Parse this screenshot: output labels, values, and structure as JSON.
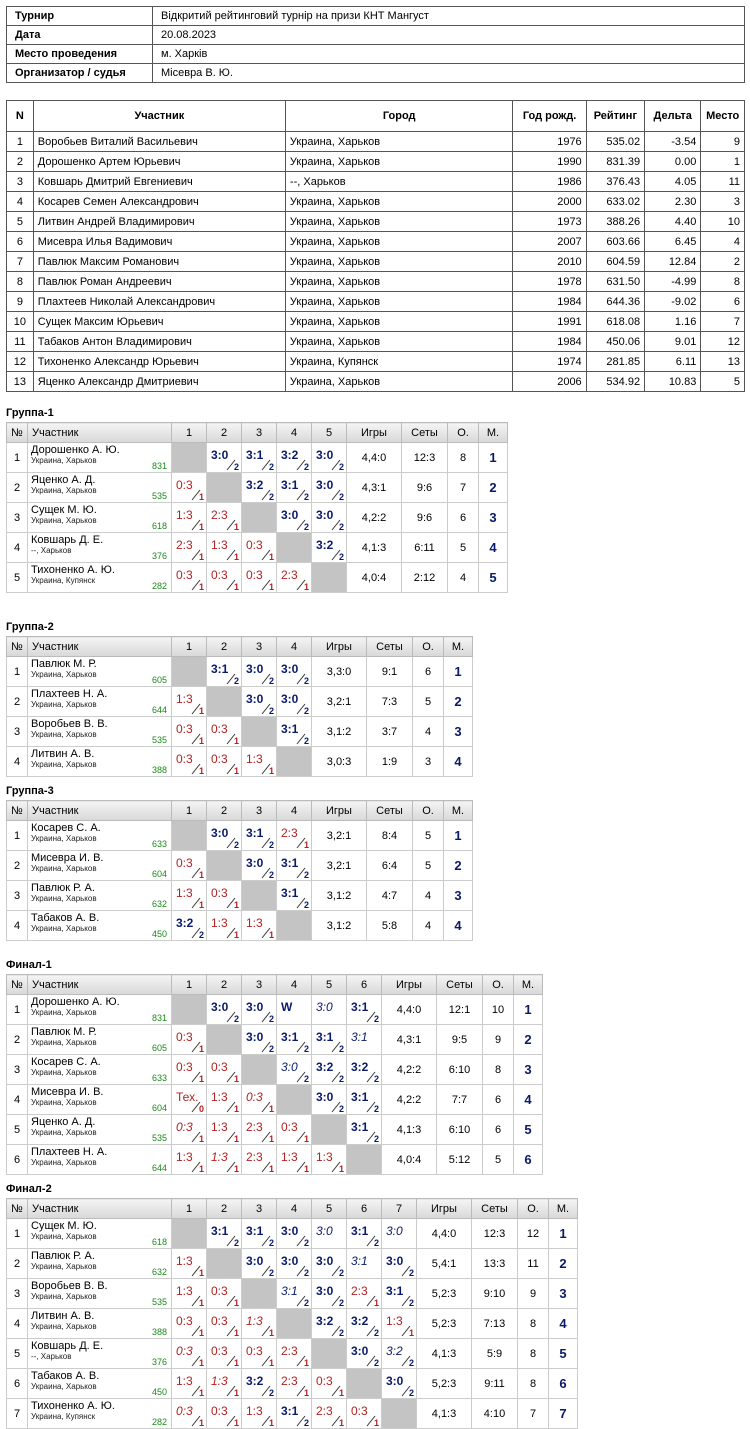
{
  "info": [
    {
      "key": "Турнир",
      "value": "Відкритий рейтинговий турнір на призи КНТ Мангуст"
    },
    {
      "key": "Дата",
      "value": "20.08.2023"
    },
    {
      "key": "Место проведения",
      "value": "м. Харків"
    },
    {
      "key": "Организатор / судья",
      "value": "Місевра В. Ю."
    }
  ],
  "players_headers": [
    "N",
    "Участник",
    "Город",
    "Год рожд.",
    "Рейтинг",
    "Дельта",
    "Место"
  ],
  "players": [
    [
      "1",
      "Воробьев Виталий Васильевич",
      "Украина, Харьков",
      "1976",
      "535.02",
      "-3.54",
      "9"
    ],
    [
      "2",
      "Дорошенко Артем Юрьевич",
      "Украина, Харьков",
      "1990",
      "831.39",
      "0.00",
      "1"
    ],
    [
      "3",
      "Ковшарь Дмитрий Евгениевич",
      "--, Харьков",
      "1986",
      "376.43",
      "4.05",
      "11"
    ],
    [
      "4",
      "Косарев Семен Александрович",
      "Украина, Харьков",
      "2000",
      "633.02",
      "2.30",
      "3"
    ],
    [
      "5",
      "Литвин Андрей Владимирович",
      "Украина, Харьков",
      "1973",
      "388.26",
      "4.40",
      "10"
    ],
    [
      "6",
      "Мисевра Илья Вадимович",
      "Украина, Харьков",
      "2007",
      "603.66",
      "6.45",
      "4"
    ],
    [
      "7",
      "Павлюк Максим Романович",
      "Украина, Харьков",
      "2010",
      "604.59",
      "12.84",
      "2"
    ],
    [
      "8",
      "Павлюк Роман Андреевич",
      "Украина, Харьков",
      "1978",
      "631.50",
      "-4.99",
      "8"
    ],
    [
      "9",
      "Плахтеев Николай Александрович",
      "Украина, Харьков",
      "1984",
      "644.36",
      "-9.02",
      "6"
    ],
    [
      "10",
      "Сущек Максим Юрьевич",
      "Украина, Харьков",
      "1991",
      "618.08",
      "1.16",
      "7"
    ],
    [
      "11",
      "Табаков Антон Владимирович",
      "Украина, Харьков",
      "1984",
      "450.06",
      "9.01",
      "12"
    ],
    [
      "12",
      "Тихоненко Александр Юрьевич",
      "Украина, Купянск",
      "1974",
      "281.85",
      "6.11",
      "13"
    ],
    [
      "13",
      "Яценко Александр Дмитриевич",
      "Украина, Харьков",
      "2006",
      "534.92",
      "10.83",
      "5"
    ]
  ],
  "group_headers": {
    "num": "№",
    "player": "Участник",
    "games": "Игры",
    "sets": "Сеты",
    "points": "О.",
    "place": "М."
  },
  "groups": [
    {
      "title": "Группа-1",
      "rows": [
        {
          "n": "1",
          "name": "Дорошенко А. Ю.",
          "city": "Украина, Харьков",
          "rating": "831",
          "cells": [
            null,
            "3:0|2|w",
            "3:1|2|w",
            "3:2|2|w",
            "3:0|2|w"
          ],
          "games": "4,4:0",
          "sets": "12:3",
          "points": "8",
          "place": "1"
        },
        {
          "n": "2",
          "name": "Яценко А. Д.",
          "city": "Украина, Харьков",
          "rating": "535",
          "cells": [
            "0:3|1|l",
            null,
            "3:2|2|w",
            "3:1|2|w",
            "3:0|2|w"
          ],
          "games": "4,3:1",
          "sets": "9:6",
          "points": "7",
          "place": "2"
        },
        {
          "n": "3",
          "name": "Сущек М. Ю.",
          "city": "Украина, Харьков",
          "rating": "618",
          "cells": [
            "1:3|1|l",
            "2:3|1|l",
            null,
            "3:0|2|w",
            "3:0|2|w"
          ],
          "games": "4,2:2",
          "sets": "9:6",
          "points": "6",
          "place": "3"
        },
        {
          "n": "4",
          "name": "Ковшарь Д. Е.",
          "city": "--, Харьков",
          "rating": "376",
          "cells": [
            "2:3|1|l",
            "1:3|1|l",
            "0:3|1|l",
            null,
            "3:2|2|w"
          ],
          "games": "4,1:3",
          "sets": "6:11",
          "points": "5",
          "place": "4"
        },
        {
          "n": "5",
          "name": "Тихоненко А. Ю.",
          "city": "Украина, Купянск",
          "rating": "282",
          "cells": [
            "0:3|1|l",
            "0:3|1|l",
            "0:3|1|l",
            "2:3|1|l",
            null
          ],
          "games": "4,0:4",
          "sets": "2:12",
          "points": "4",
          "place": "5"
        }
      ]
    },
    {
      "title": "Группа-2",
      "rows": [
        {
          "n": "1",
          "name": "Павлюк М. Р.",
          "city": "Украина, Харьков",
          "rating": "605",
          "cells": [
            null,
            "3:1|2|w",
            "3:0|2|w",
            "3:0|2|w"
          ],
          "games": "3,3:0",
          "sets": "9:1",
          "points": "6",
          "place": "1"
        },
        {
          "n": "2",
          "name": "Плахтеев Н. А.",
          "city": "Украина, Харьков",
          "rating": "644",
          "cells": [
            "1:3|1|l",
            null,
            "3:0|2|w",
            "3:0|2|w"
          ],
          "games": "3,2:1",
          "sets": "7:3",
          "points": "5",
          "place": "2"
        },
        {
          "n": "3",
          "name": "Воробьев В. В.",
          "city": "Украина, Харьков",
          "rating": "535",
          "cells": [
            "0:3|1|l",
            "0:3|1|l",
            null,
            "3:1|2|w"
          ],
          "games": "3,1:2",
          "sets": "3:7",
          "points": "4",
          "place": "3"
        },
        {
          "n": "4",
          "name": "Литвин А. В.",
          "city": "Украина, Харьков",
          "rating": "388",
          "cells": [
            "0:3|1|l",
            "0:3|1|l",
            "1:3|1|l",
            null
          ],
          "games": "3,0:3",
          "sets": "1:9",
          "points": "3",
          "place": "4"
        }
      ]
    },
    {
      "title": "Группа-3",
      "rows": [
        {
          "n": "1",
          "name": "Косарев С. А.",
          "city": "Украина, Харьков",
          "rating": "633",
          "cells": [
            null,
            "3:0|2|w",
            "3:1|2|w",
            "2:3|1|l"
          ],
          "games": "3,2:1",
          "sets": "8:4",
          "points": "5",
          "place": "1"
        },
        {
          "n": "2",
          "name": "Мисевра И. В.",
          "city": "Украина, Харьков",
          "rating": "604",
          "cells": [
            "0:3|1|l",
            null,
            "3:0|2|w",
            "3:1|2|w"
          ],
          "games": "3,2:1",
          "sets": "6:4",
          "points": "5",
          "place": "2"
        },
        {
          "n": "3",
          "name": "Павлюк Р. А.",
          "city": "Украина, Харьков",
          "rating": "632",
          "cells": [
            "1:3|1|l",
            "0:3|1|l",
            null,
            "3:1|2|w"
          ],
          "games": "3,1:2",
          "sets": "4:7",
          "points": "4",
          "place": "3"
        },
        {
          "n": "4",
          "name": "Табаков А. В.",
          "city": "Украина, Харьков",
          "rating": "450",
          "cells": [
            "3:2|2|w",
            "1:3|1|l",
            "1:3|1|l",
            null
          ],
          "games": "3,1:2",
          "sets": "5:8",
          "points": "4",
          "place": "4"
        }
      ]
    },
    {
      "title": "Финал-1",
      "rows": [
        {
          "n": "1",
          "name": "Дорошенко А. Ю.",
          "city": "Украина, Харьков",
          "rating": "831",
          "cells": [
            null,
            "3:0|2|w",
            "3:0|2|w",
            "W||w",
            "3:0||wi",
            "3:1|2|w"
          ],
          "games": "4,4:0",
          "sets": "12:1",
          "points": "10",
          "place": "1"
        },
        {
          "n": "2",
          "name": "Павлюк М. Р.",
          "city": "Украина, Харьков",
          "rating": "605",
          "cells": [
            "0:3|1|l",
            null,
            "3:0|2|w",
            "3:1|2|w",
            "3:1|2|w",
            "3:1||wi"
          ],
          "games": "4,3:1",
          "sets": "9:5",
          "points": "9",
          "place": "2"
        },
        {
          "n": "3",
          "name": "Косарев С. А.",
          "city": "Украина, Харьков",
          "rating": "633",
          "cells": [
            "0:3|1|l",
            "0:3|1|l",
            null,
            "3:0|2|wi",
            "3:2|2|w",
            "3:2|2|w"
          ],
          "games": "4,2:2",
          "sets": "6:10",
          "points": "8",
          "place": "3"
        },
        {
          "n": "4",
          "name": "Мисевра И. В.",
          "city": "Украина, Харьков",
          "rating": "604",
          "cells": [
            "Тех.|0|lt",
            "1:3|1|l",
            "0:3|1|li",
            null,
            "3:0|2|w",
            "3:1|2|w"
          ],
          "games": "4,2:2",
          "sets": "7:7",
          "points": "6",
          "place": "4"
        },
        {
          "n": "5",
          "name": "Яценко А. Д.",
          "city": "Украина, Харьков",
          "rating": "535",
          "cells": [
            "0:3|1|li",
            "1:3|1|l",
            "2:3|1|l",
            "0:3|1|l",
            null,
            "3:1|2|w"
          ],
          "games": "4,1:3",
          "sets": "6:10",
          "points": "6",
          "place": "5"
        },
        {
          "n": "6",
          "name": "Плахтеев Н. А.",
          "city": "Украина, Харьков",
          "rating": "644",
          "cells": [
            "1:3|1|l",
            "1:3|1|li",
            "2:3|1|l",
            "1:3|1|l",
            "1:3|1|l",
            null
          ],
          "games": "4,0:4",
          "sets": "5:12",
          "points": "5",
          "place": "6"
        }
      ]
    },
    {
      "title": "Финал-2",
      "rows": [
        {
          "n": "1",
          "name": "Сущек М. Ю.",
          "city": "Украина, Харьков",
          "rating": "618",
          "cells": [
            null,
            "3:1|2|w",
            "3:1|2|w",
            "3:0|2|w",
            "3:0||wi",
            "3:1|2|w",
            "3:0||wi"
          ],
          "games": "4,4:0",
          "sets": "12:3",
          "points": "12",
          "place": "1"
        },
        {
          "n": "2",
          "name": "Павлюк Р. А.",
          "city": "Украина, Харьков",
          "rating": "632",
          "cells": [
            "1:3|1|l",
            null,
            "3:0|2|w",
            "3:0|2|w",
            "3:0|2|w",
            "3:1||wi",
            "3:0|2|w"
          ],
          "games": "5,4:1",
          "sets": "13:3",
          "points": "11",
          "place": "2"
        },
        {
          "n": "3",
          "name": "Воробьев В. В.",
          "city": "Украина, Харьков",
          "rating": "535",
          "cells": [
            "1:3|1|l",
            "0:3|1|l",
            null,
            "3:1|2|wi",
            "3:0|2|w",
            "2:3|1|l",
            "3:1|2|w"
          ],
          "games": "5,2:3",
          "sets": "9:10",
          "points": "9",
          "place": "3"
        },
        {
          "n": "4",
          "name": "Литвин А. В.",
          "city": "Украина, Харьков",
          "rating": "388",
          "cells": [
            "0:3|1|l",
            "0:3|1|l",
            "1:3|1|li",
            null,
            "3:2|2|w",
            "3:2|2|w",
            "1:3|1|l"
          ],
          "games": "5,2:3",
          "sets": "7:13",
          "points": "8",
          "place": "4"
        },
        {
          "n": "5",
          "name": "Ковшарь Д. Е.",
          "city": "--, Харьков",
          "rating": "376",
          "cells": [
            "0:3|1|li",
            "0:3|1|l",
            "0:3|1|l",
            "2:3|1|l",
            null,
            "3:0|2|w",
            "3:2|2|wi"
          ],
          "games": "4,1:3",
          "sets": "5:9",
          "points": "8",
          "place": "5"
        },
        {
          "n": "6",
          "name": "Табаков А. В.",
          "city": "Украина, Харьков",
          "rating": "450",
          "cells": [
            "1:3|1|l",
            "1:3|1|li",
            "3:2|2|w",
            "2:3|1|l",
            "0:3|1|l",
            null,
            "3:0|2|w"
          ],
          "games": "5,2:3",
          "sets": "9:11",
          "points": "8",
          "place": "6"
        },
        {
          "n": "7",
          "name": "Тихоненко А. Ю.",
          "city": "Украина, Купянск",
          "rating": "282",
          "cells": [
            "0:3|1|li",
            "0:3|1|l",
            "1:3|1|l",
            "3:1|2|w",
            "2:3|1|l",
            "0:3|1|l",
            null
          ],
          "games": "4,1:3",
          "sets": "4:10",
          "points": "7",
          "place": "7"
        }
      ]
    }
  ]
}
